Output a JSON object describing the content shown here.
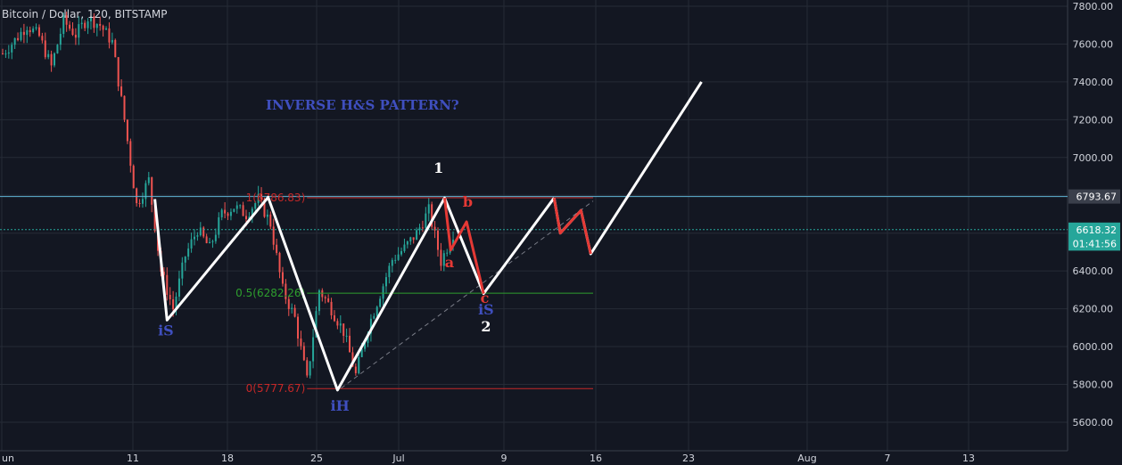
{
  "header": {
    "symbol": "Bitcoin / Dollar, 120, BITSTAMP"
  },
  "colors": {
    "background": "#131722",
    "grid": "#262b36",
    "axis_text": "#d1d4dc",
    "candle_up": "#26a69a",
    "candle_down": "#ef5350",
    "white_path": "#ffffff",
    "red_path": "#e53935",
    "label_blue": "#3f4fbf",
    "fib_red": "#c62828",
    "fib_green": "#2e9e2e",
    "last_price_green": "#26a69a",
    "resistance_blue": "#5fb4d4",
    "badge_dark": "#3a3f4b"
  },
  "chart_data": {
    "type": "candlestick",
    "title": "Bitcoin / Dollar, 120, BITSTAMP",
    "annotation_title": "INVERSE H&S PATTERN?",
    "x_tick_labels": [
      "un",
      "11",
      "18",
      "25",
      "Jul",
      "9",
      "16",
      "23",
      "Aug",
      "7",
      "13"
    ],
    "y_tick_labels": [
      "7800.00",
      "7600.00",
      "7400.00",
      "7200.00",
      "7000.00",
      "6800.00",
      "6600.00",
      "6400.00",
      "6200.00",
      "6000.00",
      "5800.00",
      "5600.00"
    ],
    "ylim": [
      5520,
      7820
    ],
    "price_badges": [
      {
        "label": "6793.67",
        "value": 6793.67,
        "style": "resistance"
      },
      {
        "label": "6618.32",
        "value": 6618.32,
        "style": "last"
      },
      {
        "label": "01:41:56",
        "value": 6545,
        "style": "countdown"
      }
    ],
    "resistance_line": 6793.67,
    "last_price_line": 6618.32,
    "price_path": [
      {
        "x": 0,
        "y": 7550
      },
      {
        "x": 1,
        "y": 7620
      },
      {
        "x": 2,
        "y": 7700
      },
      {
        "x": 3,
        "y": 7640
      },
      {
        "x": 4,
        "y": 7480
      },
      {
        "x": 5,
        "y": 7720
      },
      {
        "x": 6,
        "y": 7650
      },
      {
        "x": 7,
        "y": 7740
      },
      {
        "x": 8,
        "y": 7700
      },
      {
        "x": 9,
        "y": 7610
      },
      {
        "x": 10,
        "y": 7200
      },
      {
        "x": 11,
        "y": 6750
      },
      {
        "x": 12,
        "y": 6880
      },
      {
        "x": 13,
        "y": 6400
      },
      {
        "x": 14,
        "y": 6200
      },
      {
        "x": 15,
        "y": 6480
      },
      {
        "x": 16,
        "y": 6620
      },
      {
        "x": 17,
        "y": 6520
      },
      {
        "x": 18,
        "y": 6700
      },
      {
        "x": 19,
        "y": 6740
      },
      {
        "x": 20,
        "y": 6700
      },
      {
        "x": 21,
        "y": 6780
      },
      {
        "x": 22,
        "y": 6650
      },
      {
        "x": 23,
        "y": 6300
      },
      {
        "x": 24,
        "y": 6150
      },
      {
        "x": 25,
        "y": 5820
      },
      {
        "x": 26,
        "y": 6300
      },
      {
        "x": 27,
        "y": 6200
      },
      {
        "x": 28,
        "y": 6080
      },
      {
        "x": 29,
        "y": 5850
      },
      {
        "x": 30,
        "y": 6100
      },
      {
        "x": 31,
        "y": 6280
      },
      {
        "x": 32,
        "y": 6460
      },
      {
        "x": 33,
        "y": 6520
      },
      {
        "x": 34,
        "y": 6600
      },
      {
        "x": 35,
        "y": 6720
      },
      {
        "x": 36,
        "y": 6450
      },
      {
        "x": 37,
        "y": 6600
      }
    ],
    "fibonacci": [
      {
        "label": "1(6786.83)",
        "value": 6786.83,
        "x_start": 25,
        "x_end": 48.5,
        "color": "fib_red"
      },
      {
        "label": "0.5(6282.26)",
        "value": 6282.26,
        "x_start": 25,
        "x_end": 48.5,
        "color": "fib_green"
      },
      {
        "label": "0(5777.67)",
        "value": 5777.67,
        "x_start": 25,
        "x_end": 48.5,
        "color": "fib_red"
      }
    ],
    "white_path": [
      {
        "x": 12.5,
        "y": 6780
      },
      {
        "x": 13.5,
        "y": 6140
      },
      {
        "x": 21.8,
        "y": 6790
      },
      {
        "x": 27.5,
        "y": 5770
      },
      {
        "x": 36.3,
        "y": 6786
      },
      {
        "x": 39.5,
        "y": 6280
      },
      {
        "x": 45.3,
        "y": 6786
      }
    ],
    "red_path": [
      {
        "x": 36.3,
        "y": 6786
      },
      {
        "x": 36.8,
        "y": 6510
      },
      {
        "x": 38.1,
        "y": 6660
      },
      {
        "x": 39.5,
        "y": 6280
      }
    ],
    "white_projection": [
      {
        "x": 45.3,
        "y": 6786
      },
      {
        "x": 45.8,
        "y": 6600
      },
      {
        "x": 47.5,
        "y": 6720
      },
      {
        "x": 48.3,
        "y": 6490
      },
      {
        "x": 57.4,
        "y": 7400
      }
    ],
    "red_projection": [
      {
        "x": 45.3,
        "y": 6786
      },
      {
        "x": 45.8,
        "y": 6600
      },
      {
        "x": 47.5,
        "y": 6720
      },
      {
        "x": 48.3,
        "y": 6490
      }
    ],
    "dashed_trendline": [
      {
        "x": 27.8,
        "y": 5780
      },
      {
        "x": 48.5,
        "y": 6770
      }
    ],
    "labels": [
      {
        "text": "iS",
        "x": 13.4,
        "y": 6060,
        "color": "label_blue"
      },
      {
        "text": "iH",
        "x": 27.7,
        "y": 5660,
        "color": "label_blue"
      },
      {
        "text": "iS",
        "x": 39.7,
        "y": 6170,
        "color": "label_blue"
      },
      {
        "text": "1",
        "x": 35.8,
        "y": 6920,
        "color": "white_path"
      },
      {
        "text": "2",
        "x": 39.7,
        "y": 6080,
        "color": "white_path"
      },
      {
        "text": "a",
        "x": 36.7,
        "y": 6420,
        "color": "red_path"
      },
      {
        "text": "b",
        "x": 38.2,
        "y": 6740,
        "color": "red_path"
      },
      {
        "text": "c",
        "x": 39.6,
        "y": 6230,
        "color": "red_path"
      }
    ]
  }
}
